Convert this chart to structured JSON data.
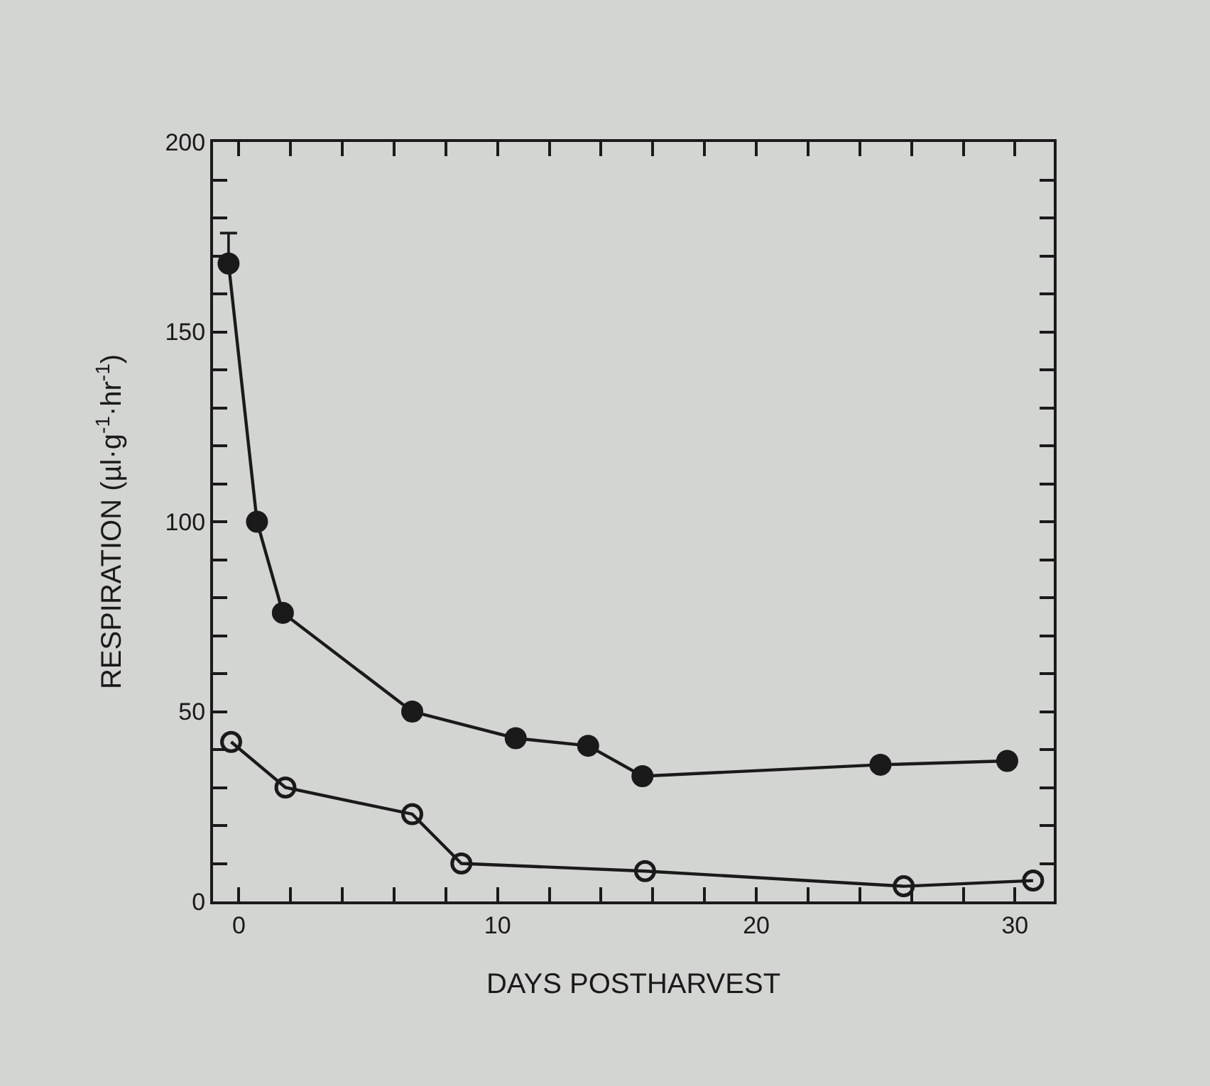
{
  "chart_data": {
    "type": "line",
    "xlabel": "DAYS POSTHARVEST",
    "ylabel": "RESPIRATION (µl·g$^{-1}$·hr$^{-1}$)",
    "xlim": [
      -1,
      31.5
    ],
    "ylim": [
      0,
      200
    ],
    "xticks": [
      0,
      {
        "value": 2,
        "label": null
      },
      {
        "value": 4,
        "label": null
      },
      {
        "value": 6,
        "label": null
      },
      {
        "value": 8,
        "label": null
      },
      10,
      {
        "value": 12,
        "label": null
      },
      {
        "value": 14,
        "label": null
      },
      {
        "value": 16,
        "label": null
      },
      {
        "value": 18,
        "label": null
      },
      20,
      {
        "value": 22,
        "label": null
      },
      {
        "value": 24,
        "label": null
      },
      {
        "value": 26,
        "label": null
      },
      {
        "value": 28,
        "label": null
      },
      30
    ],
    "yticks": [
      0,
      {
        "value": 10,
        "label": null
      },
      {
        "value": 20,
        "label": null
      },
      {
        "value": 30,
        "label": null
      },
      {
        "value": 40,
        "label": null
      },
      50,
      {
        "value": 60,
        "label": null
      },
      {
        "value": 70,
        "label": null
      },
      {
        "value": 80,
        "label": null
      },
      {
        "value": 90,
        "label": null
      },
      100,
      {
        "value": 110,
        "label": null
      },
      {
        "value": 120,
        "label": null
      },
      {
        "value": 130,
        "label": null
      },
      {
        "value": 140,
        "label": null
      },
      150,
      {
        "value": 160,
        "label": null
      },
      {
        "value": 170,
        "label": null
      },
      {
        "value": 180,
        "label": null
      },
      {
        "value": 190,
        "label": null
      },
      200
    ],
    "grid": false,
    "line_style": "solid",
    "series": [
      {
        "color": "#1a1a1a",
        "marker": "circle",
        "x": [
          -0.4,
          0.7,
          1.7,
          6.7,
          10.7,
          13.5,
          15.6,
          24.8,
          29.7
        ],
        "values": [
          168,
          100,
          76,
          50,
          43,
          41,
          33,
          36,
          37
        ],
        "errors": [
          [
            168,
            176
          ],
          null,
          null,
          null,
          null,
          null,
          null,
          null,
          null
        ]
      },
      {
        "color": "#1a1a1a",
        "marker": "circle-open",
        "x": [
          -0.3,
          1.8,
          6.7,
          8.6,
          15.7,
          25.7,
          30.7
        ],
        "values": [
          42,
          30,
          23,
          10,
          8,
          4,
          5.5
        ]
      }
    ]
  }
}
